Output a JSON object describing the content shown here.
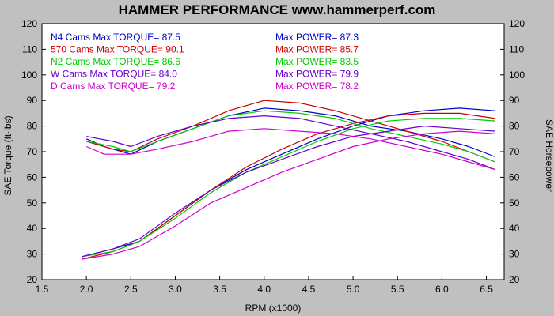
{
  "chart_data": {
    "type": "line",
    "title": "HAMMER PERFORMANCE www.hammerperf.com",
    "xlabel": "RPM (x1000)",
    "ylabel_left": "SAE Torque (ft-lbs)",
    "ylabel_right": "SAE Horsepower",
    "xlim": [
      1.5,
      6.7
    ],
    "ylim": [
      20,
      120
    ],
    "xticks": [
      "1.5",
      "2.0",
      "2.5",
      "3.0",
      "3.5",
      "4.0",
      "4.5",
      "5.0",
      "5.5",
      "6.0",
      "6.5"
    ],
    "yticks": [
      "20",
      "30",
      "40",
      "50",
      "60",
      "70",
      "80",
      "90",
      "100",
      "110",
      "120"
    ],
    "grid": false,
    "legend": [
      {
        "torque_text": "N4 Cams  Max TORQUE= 87.5",
        "power_text": "Max POWER= 87.3",
        "color": "#0000cc"
      },
      {
        "torque_text": "570 Cams  Max TORQUE= 90.1",
        "power_text": "Max POWER= 85.7",
        "color": "#cc0000"
      },
      {
        "torque_text": "N2 Cams  Max TORQUE= 86.6",
        "power_text": "Max POWER= 83.5",
        "color": "#00cc00"
      },
      {
        "torque_text": "W Cams  Max TORQUE= 84.0",
        "power_text": "Max POWER= 79.9",
        "color": "#6600cc"
      },
      {
        "torque_text": "D Cams  Max TORQUE= 79.2",
        "power_text": "Max POWER= 78.2",
        "color": "#cc00cc"
      }
    ],
    "series": [
      {
        "name": "N4 Cams",
        "color": "#0000cc",
        "torque": [
          [
            2.0,
            75
          ],
          [
            2.2,
            72
          ],
          [
            2.5,
            69
          ],
          [
            2.8,
            74
          ],
          [
            3.2,
            79
          ],
          [
            3.6,
            84
          ],
          [
            4.0,
            87
          ],
          [
            4.4,
            86
          ],
          [
            4.8,
            84
          ],
          [
            5.2,
            80
          ],
          [
            5.6,
            78
          ],
          [
            6.0,
            75
          ],
          [
            6.3,
            72
          ],
          [
            6.6,
            68
          ]
        ],
        "power": [
          [
            1.95,
            29
          ],
          [
            2.3,
            32
          ],
          [
            2.6,
            35
          ],
          [
            3.0,
            45
          ],
          [
            3.4,
            55
          ],
          [
            3.8,
            63
          ],
          [
            4.2,
            69
          ],
          [
            4.6,
            75
          ],
          [
            5.0,
            80
          ],
          [
            5.4,
            84
          ],
          [
            5.8,
            86
          ],
          [
            6.2,
            87
          ],
          [
            6.6,
            86
          ]
        ]
      },
      {
        "name": "570 Cams",
        "color": "#cc0000",
        "torque": [
          [
            2.0,
            74
          ],
          [
            2.3,
            71
          ],
          [
            2.5,
            70
          ],
          [
            2.8,
            75
          ],
          [
            3.2,
            80
          ],
          [
            3.6,
            86
          ],
          [
            4.0,
            90
          ],
          [
            4.4,
            89
          ],
          [
            4.8,
            86
          ],
          [
            5.2,
            82
          ],
          [
            5.6,
            78
          ],
          [
            6.0,
            74
          ],
          [
            6.3,
            70
          ],
          [
            6.6,
            66
          ]
        ],
        "power": [
          [
            1.95,
            28
          ],
          [
            2.3,
            31
          ],
          [
            2.6,
            35
          ],
          [
            3.0,
            45
          ],
          [
            3.4,
            55
          ],
          [
            3.8,
            64
          ],
          [
            4.2,
            71
          ],
          [
            4.6,
            77
          ],
          [
            5.0,
            81
          ],
          [
            5.4,
            84
          ],
          [
            5.8,
            85
          ],
          [
            6.2,
            85
          ],
          [
            6.6,
            83
          ]
        ]
      },
      {
        "name": "N2 Cams",
        "color": "#00cc00",
        "torque": [
          [
            2.0,
            74
          ],
          [
            2.3,
            72
          ],
          [
            2.5,
            70
          ],
          [
            2.8,
            74
          ],
          [
            3.2,
            79
          ],
          [
            3.6,
            84
          ],
          [
            4.0,
            86
          ],
          [
            4.4,
            85
          ],
          [
            4.8,
            83
          ],
          [
            5.2,
            79
          ],
          [
            5.6,
            76
          ],
          [
            6.0,
            73
          ],
          [
            6.3,
            70
          ],
          [
            6.6,
            66
          ]
        ],
        "power": [
          [
            1.95,
            29
          ],
          [
            2.3,
            31
          ],
          [
            2.6,
            35
          ],
          [
            3.0,
            44
          ],
          [
            3.4,
            54
          ],
          [
            3.8,
            62
          ],
          [
            4.2,
            68
          ],
          [
            4.6,
            74
          ],
          [
            5.0,
            79
          ],
          [
            5.4,
            82
          ],
          [
            5.8,
            83
          ],
          [
            6.2,
            83
          ],
          [
            6.6,
            82
          ]
        ]
      },
      {
        "name": "W Cams",
        "color": "#6600cc",
        "torque": [
          [
            2.0,
            76
          ],
          [
            2.3,
            74
          ],
          [
            2.5,
            72
          ],
          [
            2.8,
            76
          ],
          [
            3.2,
            80
          ],
          [
            3.6,
            83
          ],
          [
            4.0,
            84
          ],
          [
            4.4,
            83
          ],
          [
            4.8,
            80
          ],
          [
            5.2,
            77
          ],
          [
            5.6,
            74
          ],
          [
            6.0,
            70
          ],
          [
            6.3,
            67
          ],
          [
            6.6,
            63
          ]
        ],
        "power": [
          [
            1.95,
            29
          ],
          [
            2.3,
            32
          ],
          [
            2.6,
            36
          ],
          [
            3.0,
            46
          ],
          [
            3.4,
            55
          ],
          [
            3.8,
            62
          ],
          [
            4.2,
            67
          ],
          [
            4.6,
            72
          ],
          [
            5.0,
            76
          ],
          [
            5.4,
            78
          ],
          [
            5.8,
            80
          ],
          [
            6.2,
            79
          ],
          [
            6.6,
            78
          ]
        ]
      },
      {
        "name": "D Cams",
        "color": "#cc00cc",
        "torque": [
          [
            2.0,
            72
          ],
          [
            2.2,
            69
          ],
          [
            2.5,
            69
          ],
          [
            2.8,
            71
          ],
          [
            3.2,
            74
          ],
          [
            3.6,
            78
          ],
          [
            4.0,
            79
          ],
          [
            4.4,
            78
          ],
          [
            4.8,
            77
          ],
          [
            5.2,
            75
          ],
          [
            5.6,
            72
          ],
          [
            6.0,
            69
          ],
          [
            6.3,
            66
          ],
          [
            6.6,
            63
          ]
        ],
        "power": [
          [
            1.95,
            28
          ],
          [
            2.3,
            30
          ],
          [
            2.6,
            33
          ],
          [
            3.0,
            41
          ],
          [
            3.4,
            50
          ],
          [
            3.8,
            56
          ],
          [
            4.2,
            62
          ],
          [
            4.6,
            67
          ],
          [
            5.0,
            72
          ],
          [
            5.4,
            75
          ],
          [
            5.8,
            77
          ],
          [
            6.2,
            78
          ],
          [
            6.6,
            77
          ]
        ]
      }
    ]
  }
}
